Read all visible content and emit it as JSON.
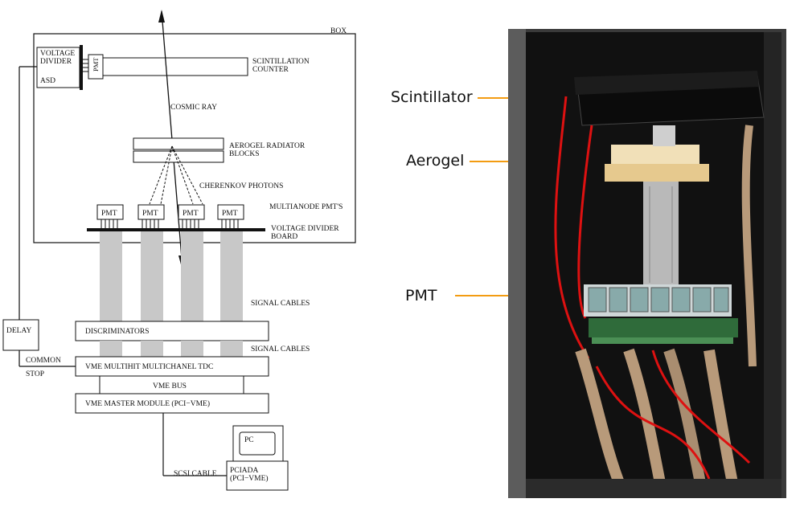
{
  "diagram": {
    "box": "BOX",
    "voltage_divider": "VOLTAGE\nDIVIDER",
    "asd": "ASD",
    "pmt_side": "PMT",
    "scintillation_counter": "SCINTILLATION\nCOUNTER",
    "cosmic_ray": "COSMIC RAY",
    "aerogel_radiator": "AEROGEL RADIATOR\nBLOCKS",
    "cherenkov_photons": "CHERENKOV PHOTONS",
    "multianode_pmts": "MULTIANODE PMT'S",
    "pmt_labels": [
      "PMT",
      "PMT",
      "PMT",
      "PMT"
    ],
    "voltage_divider_board": "VOLTAGE DIVIDER\nBOARD",
    "signal_cables_1": "SIGNAL CABLES",
    "delay": "DELAY",
    "discriminators": "DISCRIMINATORS",
    "signal_cables_2": "SIGNAL CABLES",
    "common_stop": "COMMON\nSTOP",
    "vme_tdc": "VME MULTIHIT MULTICHANEL TDC",
    "vme_bus": "VME BUS",
    "vme_master": "VME MASTER MODULE (PCI−VME)",
    "pc": "PC",
    "scsi_cable": "SCSI CABLE",
    "pciada": "PCIADA\n(PCI−VME)"
  },
  "photo_labels": {
    "scintillator": "Scintillator",
    "aerogel": "Aerogel",
    "pmt": "PMT"
  },
  "colors": {
    "arrow": "#f39c12",
    "cable_grey": "#c8c8c8",
    "cabinet": "#1b1b1b"
  }
}
